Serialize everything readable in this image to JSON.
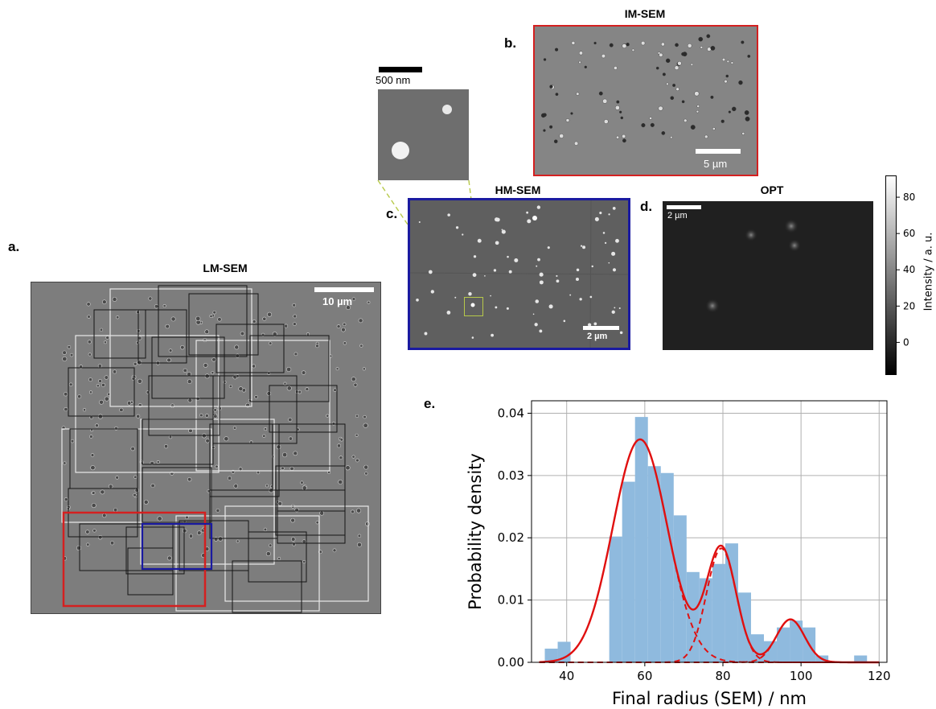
{
  "panels": {
    "a": {
      "letter": "a.",
      "title": "LM-SEM",
      "scale": "10 µm"
    },
    "b": {
      "letter": "b.",
      "title": "IM-SEM",
      "scale": "5 µm"
    },
    "c": {
      "letter": "c.",
      "title": "HM-SEM",
      "scale": "2 µm"
    },
    "d": {
      "letter": "d.",
      "title": "OPT",
      "scale": "2 µm"
    },
    "e": {
      "letter": "e."
    },
    "inset": {
      "scale": "500 nm"
    }
  },
  "colorbar": {
    "label": "Intensity / a. u.",
    "ticks": [
      "80",
      "60",
      "40",
      "20",
      "0"
    ],
    "tick_values": [
      80,
      60,
      40,
      20,
      0
    ],
    "range": [
      -18,
      92
    ]
  },
  "colors": {
    "im_box": "#d42020",
    "hm_box": "#1a1aa0",
    "inset_box": "#b7c94a",
    "hist_fill": "#8fbade",
    "fit": "#e01010"
  },
  "chart_data": {
    "type": "bar",
    "title": "",
    "xlabel": "Final radius (SEM) / nm",
    "ylabel": "Probability density",
    "xlim": [
      31,
      122
    ],
    "ylim": [
      0,
      0.042
    ],
    "xticks": [
      40,
      60,
      80,
      100,
      120
    ],
    "yticks": [
      0.0,
      0.01,
      0.02,
      0.03,
      0.04
    ],
    "xtick_labels": [
      "40",
      "60",
      "80",
      "100",
      "120"
    ],
    "ytick_labels": [
      "0.00",
      "0.01",
      "0.02",
      "0.03",
      "0.04"
    ],
    "grid": true,
    "bin_edges": [
      34.4,
      37.7,
      41.0,
      44.3,
      47.6,
      50.9,
      54.2,
      57.5,
      60.8,
      64.1,
      67.4,
      70.7,
      74.0,
      77.3,
      80.6,
      83.9,
      87.2,
      90.5,
      93.8,
      97.1,
      100.4,
      103.7,
      107.0,
      110.3,
      113.6,
      116.9
    ],
    "density": [
      0.0022,
      0.0033,
      0.0,
      0.0,
      0.0,
      0.0202,
      0.029,
      0.0394,
      0.0315,
      0.0304,
      0.0236,
      0.0145,
      0.0135,
      0.0158,
      0.0191,
      0.0112,
      0.0045,
      0.0034,
      0.0056,
      0.0067,
      0.0056,
      0.0011,
      0.0,
      0.0,
      0.0011
    ],
    "fit_components": [
      {
        "mean": 58.8,
        "sd": 7.0,
        "peak": 0.0358
      },
      {
        "mean": 79.6,
        "sd": 3.8,
        "peak": 0.0183
      },
      {
        "mean": 97.3,
        "sd": 3.6,
        "peak": 0.0069
      }
    ]
  }
}
